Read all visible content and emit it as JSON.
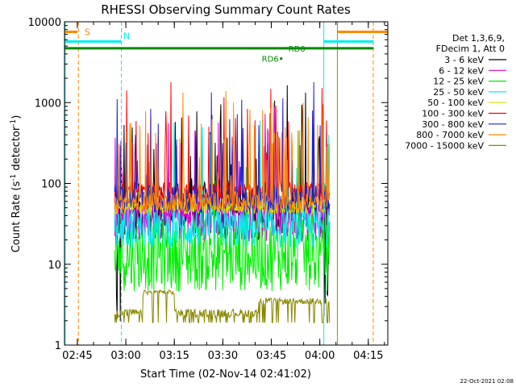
{
  "chart_data": {
    "type": "line",
    "title": "RHESSI Observing Summary Count Rates",
    "xlabel": "Start Time (02-Nov-14 02:41:02)",
    "ylabel_main": "Count Rate (s",
    "ylabel_sup1": "-1",
    "ylabel_mid": " detector",
    "ylabel_sup2": "-1",
    "ylabel_end": ")",
    "yscale": "log",
    "ylim": [
      1,
      10000
    ],
    "xlim_minutes": [
      0,
      100
    ],
    "y_ticks": [
      {
        "value": 1,
        "label": "1"
      },
      {
        "value": 10,
        "label": "10"
      },
      {
        "value": 100,
        "label": "100"
      },
      {
        "value": 1000,
        "label": "1000"
      },
      {
        "value": 10000,
        "label": "10000"
      }
    ],
    "x_ticks": [
      {
        "minute": 3.97,
        "label": "02:45"
      },
      {
        "minute": 18.97,
        "label": "03:00"
      },
      {
        "minute": 33.97,
        "label": "03:15"
      },
      {
        "minute": 48.97,
        "label": "03:30"
      },
      {
        "minute": 63.97,
        "label": "03:45"
      },
      {
        "minute": 78.97,
        "label": "04:00"
      },
      {
        "minute": 93.97,
        "label": "04:15"
      }
    ],
    "legend": {
      "header1": "Det 1,3,6,9,",
      "header2": "FDecim 1, Att 0",
      "position": "right"
    },
    "series": [
      {
        "name": "3 - 6 keV",
        "color": "#000000",
        "level": 45,
        "spread": 0.35,
        "spikes": 0.12,
        "lowDrop": true
      },
      {
        "name": "6 - 12 keV",
        "color": "#dd00dd",
        "level": 38,
        "spread": 0.3,
        "spikes": 0.05,
        "lowDrop": false
      },
      {
        "name": "12 - 25 keV",
        "color": "#00ee00",
        "level": 13,
        "spread": 0.45,
        "spikes": 0.03,
        "lowDrop": false
      },
      {
        "name": "25 - 50 keV",
        "color": "#00eeee",
        "level": 28,
        "spread": 0.25,
        "spikes": 0.03,
        "lowDrop": false
      },
      {
        "name": "50 - 100 keV",
        "color": "#dddd00",
        "level": 50,
        "spread": 0.08,
        "spikes": 0.0,
        "lowDrop": false
      },
      {
        "name": "100 - 300 keV",
        "color": "#ff0000",
        "level": 80,
        "spread": 0.12,
        "spikes": 0.1,
        "lowDrop": false
      },
      {
        "name": "300 - 800 keV",
        "color": "#2222cc",
        "level": 65,
        "spread": 0.18,
        "spikes": 0.06,
        "lowDrop": false
      },
      {
        "name": "800 - 7000 keV",
        "color": "#ff8800",
        "level": 60,
        "spread": 0.12,
        "spikes": 0.14,
        "lowDrop": false
      },
      {
        "name": "7000 - 15000 keV",
        "color": "#888800",
        "level": 2.5,
        "spread": 0.3,
        "spikes": 0.0,
        "lowDrop": false
      }
    ],
    "data_interval_minutes": [
      15.5,
      82.0
    ],
    "flags": [
      {
        "label": "S",
        "color": "#ff8800",
        "minute_start": 0,
        "minute_end": 4,
        "minute_start2": 84.5,
        "minute_end2": 100,
        "level": 7500
      },
      {
        "label": "N",
        "color": "#00eeee",
        "minute_start": 0,
        "minute_end": 17.5,
        "minute_start2": 80.3,
        "minute_end2": 95.6,
        "level": 5700
      },
      {
        "label": "",
        "color": "#008800",
        "minute_start": 0,
        "minute_end": 95.6,
        "minute_start2": null,
        "minute_end2": null,
        "level": 4700
      }
    ],
    "rd_markers": [
      {
        "label": "RD0",
        "minute": 68.5,
        "value": 4700
      },
      {
        "label": "RD6",
        "minute": 67.0,
        "value": 3500
      }
    ],
    "vertical_lines": [
      {
        "minute": 0.2,
        "color": "#00eeee",
        "dashed": false
      },
      {
        "minute": 4.3,
        "color": "#ff8800",
        "dashed": true
      },
      {
        "minute": 17.6,
        "color": "#00eeee",
        "dashed": true
      },
      {
        "minute": 80.2,
        "color": "#00eeee",
        "dashed": false
      },
      {
        "minute": 84.4,
        "color": "#aa8800",
        "dashed": false
      },
      {
        "minute": 95.5,
        "color": "#ff8800",
        "dashed": true
      }
    ]
  },
  "footer_date": "22-Oct-2021 02:08"
}
